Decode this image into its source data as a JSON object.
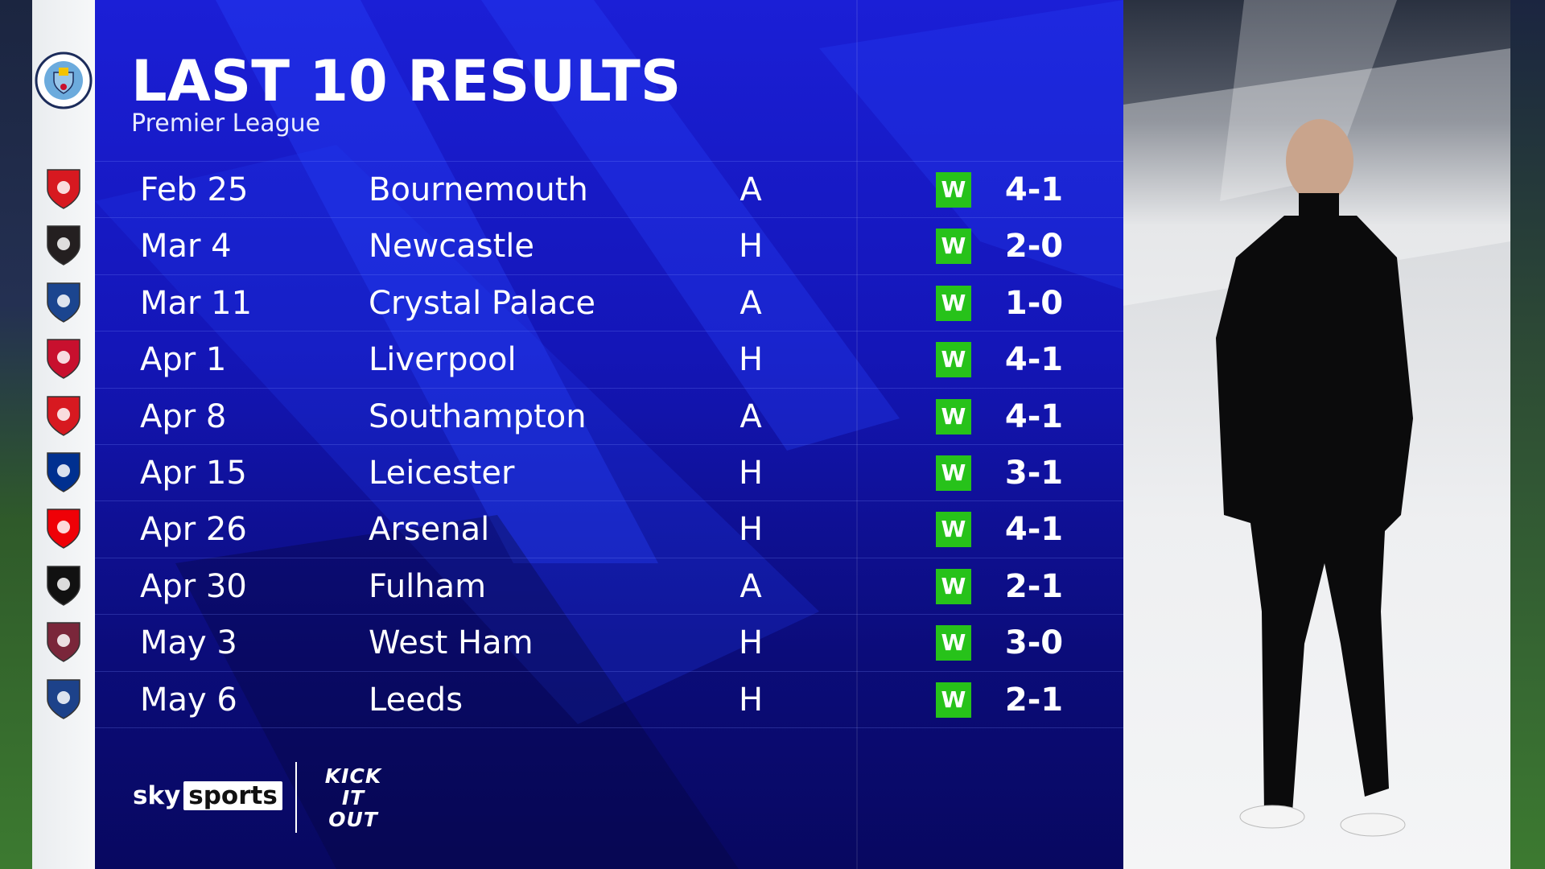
{
  "header": {
    "title": "LAST 10 RESULTS",
    "subtitle": "Premier League"
  },
  "team_crest": "manchester-city-crest",
  "accent_colors": {
    "panel": "#1416b8",
    "win": "#27c21a"
  },
  "results": [
    {
      "date": "Feb 25",
      "opponent": "Bournemouth",
      "venue": "A",
      "result": "W",
      "score": "4-1",
      "crest": "bournemouth-crest",
      "color": "#d71920"
    },
    {
      "date": "Mar 4",
      "opponent": "Newcastle",
      "venue": "H",
      "result": "W",
      "score": "2-0",
      "crest": "newcastle-crest",
      "color": "#241f20"
    },
    {
      "date": "Mar 11",
      "opponent": "Crystal Palace",
      "venue": "A",
      "result": "W",
      "score": "1-0",
      "crest": "crystal-palace-crest",
      "color": "#1b458f"
    },
    {
      "date": "Apr 1",
      "opponent": "Liverpool",
      "venue": "H",
      "result": "W",
      "score": "4-1",
      "crest": "liverpool-crest",
      "color": "#c8102e"
    },
    {
      "date": "Apr 8",
      "opponent": "Southampton",
      "venue": "A",
      "result": "W",
      "score": "4-1",
      "crest": "southampton-crest",
      "color": "#d71920"
    },
    {
      "date": "Apr 15",
      "opponent": "Leicester",
      "venue": "H",
      "result": "W",
      "score": "3-1",
      "crest": "leicester-crest",
      "color": "#003090"
    },
    {
      "date": "Apr 26",
      "opponent": "Arsenal",
      "venue": "H",
      "result": "W",
      "score": "4-1",
      "crest": "arsenal-crest",
      "color": "#ef0107"
    },
    {
      "date": "Apr 30",
      "opponent": "Fulham",
      "venue": "A",
      "result": "W",
      "score": "2-1",
      "crest": "fulham-crest",
      "color": "#111111"
    },
    {
      "date": "May 3",
      "opponent": "West Ham",
      "venue": "H",
      "result": "W",
      "score": "3-0",
      "crest": "west-ham-crest",
      "color": "#7a263a"
    },
    {
      "date": "May 6",
      "opponent": "Leeds",
      "venue": "H",
      "result": "W",
      "score": "2-1",
      "crest": "leeds-crest",
      "color": "#1d428a"
    }
  ],
  "branding": {
    "sky": "sky",
    "sports": "sports",
    "kick_it_out": "KICK IT OUT"
  }
}
